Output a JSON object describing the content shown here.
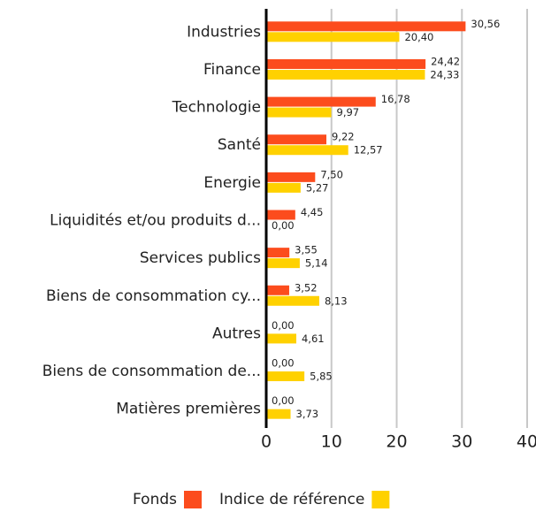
{
  "chart_data": {
    "type": "bar",
    "orientation": "horizontal",
    "categories": [
      "Industries",
      "Finance",
      "Technologie",
      "Santé",
      "Energie",
      "Liquidités et/ou produits d...",
      "Services publics",
      "Biens de consommation cy...",
      "Autres",
      "Biens de consommation de...",
      "Matières premières"
    ],
    "series": [
      {
        "name": "Fonds",
        "color": "#fc4c1d",
        "values": [
          30.56,
          24.42,
          16.78,
          9.22,
          7.5,
          4.45,
          3.55,
          3.52,
          0,
          0,
          0
        ],
        "value_labels": [
          "30,56",
          "24,42",
          "16,78",
          "9,22",
          "7,50",
          "4,45",
          "3,55",
          "3,52",
          "0,00",
          "0,00",
          "0,00"
        ]
      },
      {
        "name": "Indice de référence",
        "color": "#ffd100",
        "values": [
          20.4,
          24.33,
          9.97,
          12.57,
          5.27,
          0,
          5.14,
          8.13,
          4.61,
          5.85,
          3.73
        ],
        "value_labels": [
          "20,40",
          "24,33",
          "9,97",
          "12,57",
          "5,27",
          "0,00",
          "5,14",
          "8,13",
          "4,61",
          "5,85",
          "3,73"
        ]
      }
    ],
    "xlim": [
      0,
      40
    ],
    "xticks": [
      0,
      10,
      20,
      30,
      40
    ],
    "grid": true,
    "legend": "bottom"
  }
}
